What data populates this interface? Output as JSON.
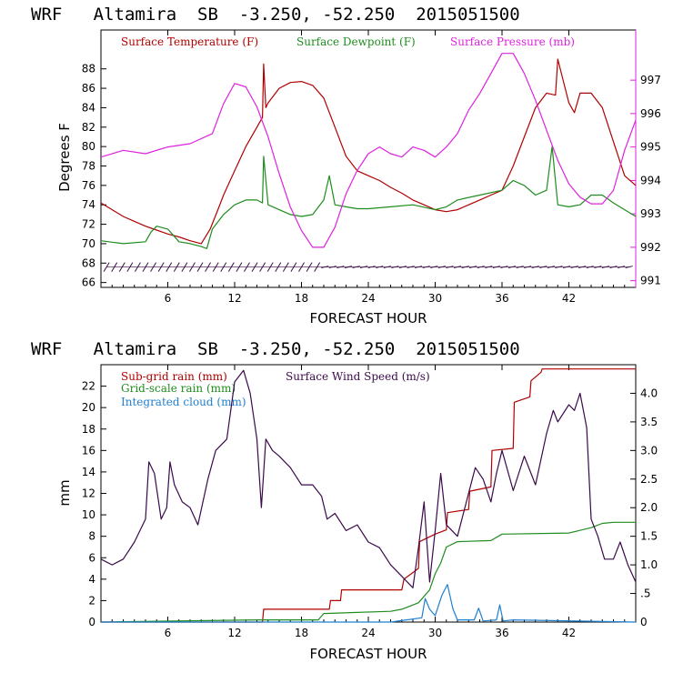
{
  "colors": {
    "temperature": "#b00000",
    "dewpoint": "#1e8c1e",
    "pressure": "#dd22dd",
    "subgrid_rain": "#b00000",
    "grid_rain": "#1e8c1e",
    "cloud": "#1e7fd0",
    "wind": "#3a0a4a",
    "axis": "#000000"
  },
  "chart_data": [
    {
      "type": "line",
      "title": "WRF   Altamira  SB  -3.250, -52.250  2015051500",
      "xlabel": "FORECAST HOUR",
      "ylabel": "Degrees F",
      "xlim": [
        0,
        48
      ],
      "xticks": [
        "6",
        "12",
        "18",
        "24",
        "30",
        "36",
        "42"
      ],
      "ylim": [
        65.5,
        92
      ],
      "yticks": [
        "66",
        "68",
        "70",
        "72",
        "74",
        "76",
        "78",
        "80",
        "82",
        "84",
        "86",
        "88"
      ],
      "y2lim": [
        990.8,
        998.5
      ],
      "y2ticks": [
        "991",
        "992",
        "993",
        "994",
        "995",
        "996",
        "997"
      ],
      "legend": [
        "Surface Temperature (F)",
        "Surface Dewpoint (F)",
        "Surface Pressure (mb)"
      ],
      "wind_barbs": "row of wind barbs along bottom at ~67.5 F",
      "series": [
        {
          "name": "Surface Temperature (F)",
          "axis": "left",
          "x": [
            0,
            1,
            2,
            3,
            4,
            5,
            6,
            7,
            8,
            9,
            9.8,
            10.5,
            11,
            12,
            13,
            14,
            14.5,
            14.6,
            14.8,
            15,
            16,
            17,
            18,
            19,
            20,
            21,
            22,
            23,
            24,
            25,
            26,
            27,
            28,
            29,
            30,
            31,
            32,
            33,
            34,
            35,
            36,
            37,
            38,
            39,
            40,
            40.8,
            41,
            42,
            42.5,
            43,
            44,
            45,
            46,
            47,
            48
          ],
          "y": [
            74.2,
            73.5,
            72.8,
            72.3,
            71.8,
            71.4,
            71.0,
            70.7,
            70.3,
            70.0,
            71.5,
            73.5,
            75.0,
            77.5,
            80.0,
            82.0,
            83.0,
            88.5,
            84.0,
            84.5,
            86.0,
            86.6,
            86.7,
            86.3,
            85.0,
            82.0,
            79.0,
            77.5,
            77.0,
            76.5,
            75.8,
            75.2,
            74.5,
            74.0,
            73.5,
            73.3,
            73.5,
            74.0,
            74.5,
            75.0,
            75.5,
            78.0,
            81.0,
            84.0,
            85.5,
            85.3,
            89.0,
            84.5,
            83.5,
            85.5,
            85.5,
            84.0,
            80.5,
            77.0,
            76.0
          ]
        },
        {
          "name": "Surface Dewpoint (F)",
          "axis": "left",
          "x": [
            0,
            2,
            4,
            4.5,
            5,
            6,
            7,
            8,
            9,
            9.5,
            10,
            11,
            12,
            13,
            14,
            14.5,
            14.6,
            15,
            16,
            17,
            18,
            19,
            20,
            20.5,
            21,
            22,
            23,
            24,
            26,
            28,
            30,
            31,
            32,
            34,
            36,
            37,
            38,
            39,
            40,
            40.5,
            41,
            42,
            43,
            44,
            45,
            46,
            47,
            48
          ],
          "y": [
            70.3,
            70.0,
            70.2,
            71.2,
            71.8,
            71.5,
            70.2,
            70.0,
            69.7,
            69.5,
            71.5,
            73.0,
            74.0,
            74.5,
            74.5,
            74.2,
            79.0,
            74.0,
            73.5,
            73.0,
            72.8,
            73.0,
            74.5,
            77.0,
            74.0,
            73.8,
            73.6,
            73.6,
            73.8,
            74.0,
            73.5,
            73.8,
            74.5,
            75.0,
            75.5,
            76.5,
            76.0,
            75.0,
            75.5,
            80.0,
            74.0,
            73.8,
            74.0,
            75.0,
            75.0,
            74.2,
            73.5,
            72.8
          ]
        },
        {
          "name": "Surface Pressure (mb)",
          "axis": "right",
          "x": [
            0,
            2,
            4,
            6,
            8,
            10,
            11,
            12,
            13,
            14,
            15,
            16,
            17,
            18,
            19,
            20,
            21,
            22,
            23,
            24,
            25,
            26,
            27,
            28,
            29,
            30,
            31,
            32,
            33,
            34,
            35,
            36,
            37,
            38,
            39,
            40,
            41,
            42,
            43,
            44,
            45,
            46,
            47,
            48
          ],
          "y": [
            994.7,
            994.9,
            994.8,
            995.0,
            995.1,
            995.4,
            996.3,
            996.9,
            996.8,
            996.2,
            995.3,
            994.2,
            993.2,
            992.5,
            992.0,
            992.0,
            992.6,
            993.6,
            994.3,
            994.8,
            995.0,
            994.8,
            994.7,
            995.0,
            994.9,
            994.7,
            995.0,
            995.4,
            996.1,
            996.6,
            997.2,
            997.8,
            997.8,
            997.2,
            996.4,
            995.5,
            994.6,
            993.9,
            993.5,
            993.3,
            993.3,
            993.7,
            994.9,
            995.8
          ]
        }
      ]
    },
    {
      "type": "line",
      "title": "WRF   Altamira  SB  -3.250, -52.250  2015051500",
      "xlabel": "FORECAST HOUR",
      "ylabel": "mm",
      "xlim": [
        0,
        48
      ],
      "xticks": [
        "6",
        "12",
        "18",
        "24",
        "30",
        "36",
        "42"
      ],
      "ylim": [
        0,
        24
      ],
      "yticks": [
        "0",
        "2",
        "4",
        "6",
        "8",
        "10",
        "12",
        "14",
        "16",
        "18",
        "20",
        "22"
      ],
      "y2lim": [
        0,
        4.5
      ],
      "y2ticks": [
        "0",
        ".5",
        "1.0",
        "1.5",
        "2.0",
        "2.5",
        "3.0",
        "3.5",
        "4.0"
      ],
      "legend": [
        "Sub-grid rain (mm)",
        "Grid-scale rain (mm)",
        "Integrated cloud (mm)",
        "Surface Wind Speed (m/s)"
      ],
      "series": [
        {
          "name": "Sub-grid rain (mm)",
          "axis": "left",
          "x": [
            0,
            14.5,
            14.6,
            20.5,
            20.6,
            21.5,
            21.6,
            27.0,
            27.2,
            28.5,
            28.6,
            30.0,
            31.0,
            31.1,
            33.0,
            33.1,
            35.0,
            35.1,
            37.0,
            37.1,
            38.5,
            38.6,
            39.5,
            39.6,
            48
          ],
          "y": [
            0,
            0,
            1.2,
            1.2,
            2.0,
            2.0,
            3.0,
            3.0,
            4.0,
            5.0,
            7.5,
            8.2,
            8.6,
            10.2,
            10.5,
            12.2,
            12.6,
            16.0,
            16.2,
            20.5,
            21.0,
            22.5,
            23.3,
            23.6,
            23.6
          ]
        },
        {
          "name": "Grid-scale rain (mm)",
          "axis": "left",
          "x": [
            0,
            14,
            19.5,
            20,
            26,
            27,
            28.5,
            29.5,
            30,
            30.5,
            31,
            32,
            35,
            36,
            42,
            44,
            45,
            46,
            48
          ],
          "y": [
            0,
            0.2,
            0.2,
            0.8,
            1.0,
            1.2,
            1.8,
            3.0,
            4.5,
            5.5,
            7.0,
            7.5,
            7.6,
            8.2,
            8.3,
            8.8,
            9.2,
            9.3,
            9.3
          ]
        },
        {
          "name": "Integrated cloud (mm)",
          "axis": "left",
          "x": [
            0,
            26,
            28.8,
            29.1,
            29.5,
            30.0,
            30.6,
            31.1,
            31.6,
            32.0,
            33.5,
            33.9,
            34.3,
            35.5,
            35.8,
            36.1,
            37.0,
            48
          ],
          "y": [
            0,
            0,
            0.4,
            2.2,
            1.2,
            0.6,
            2.5,
            3.5,
            1.2,
            0.2,
            0.2,
            1.3,
            0.1,
            0.2,
            1.6,
            0.1,
            0.2,
            0.0
          ]
        },
        {
          "name": "Surface Wind Speed (m/s)",
          "axis": "right",
          "x": [
            0,
            1,
            2,
            3,
            4,
            4.3,
            4.8,
            5.4,
            5.9,
            6.2,
            6.6,
            7.3,
            8.0,
            8.7,
            9.6,
            10.3,
            11.3,
            12.0,
            12.8,
            13.4,
            14.0,
            14.4,
            14.8,
            15.4,
            16.0,
            17.0,
            18.0,
            19.0,
            19.8,
            20.3,
            21.0,
            22.0,
            23.0,
            24.0,
            25.0,
            26.0,
            27.0,
            28.0,
            28.5,
            29.0,
            29.5,
            30.0,
            30.5,
            31.0,
            32.0,
            32.8,
            33.6,
            34.3,
            35.0,
            35.5,
            36.0,
            37.0,
            37.5,
            38.0,
            39.0,
            40.0,
            40.6,
            41.0,
            42.0,
            42.5,
            43.0,
            43.6,
            44.0,
            44.6,
            45.2,
            46.0,
            46.6,
            47.3,
            48.0
          ],
          "y": [
            1.1,
            1.0,
            1.1,
            1.4,
            1.8,
            2.8,
            2.6,
            1.8,
            2.0,
            2.8,
            2.4,
            2.1,
            2.0,
            1.7,
            2.5,
            3.0,
            3.2,
            4.2,
            4.4,
            4.0,
            3.2,
            2.0,
            3.2,
            3.0,
            2.9,
            2.7,
            2.4,
            2.4,
            2.2,
            1.8,
            1.9,
            1.6,
            1.7,
            1.4,
            1.3,
            1.0,
            0.8,
            0.6,
            1.3,
            2.1,
            0.7,
            1.6,
            2.6,
            1.7,
            1.5,
            2.1,
            2.7,
            2.5,
            2.1,
            2.6,
            3.0,
            2.3,
            2.6,
            2.9,
            2.4,
            3.3,
            3.7,
            3.5,
            3.8,
            3.7,
            4.0,
            3.4,
            1.8,
            1.5,
            1.1,
            1.1,
            1.4,
            1.0,
            0.7
          ]
        }
      ]
    }
  ]
}
